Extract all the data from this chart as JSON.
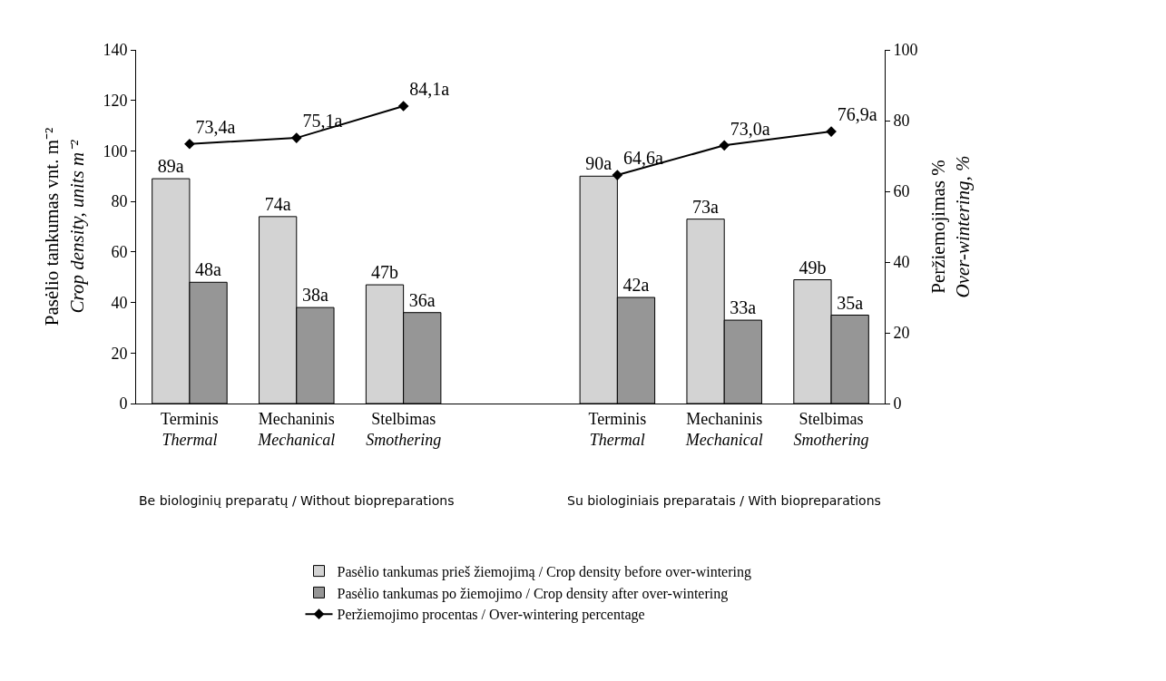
{
  "chart_data": {
    "type": "bar",
    "categories": [
      "Terminis\nThermal",
      "Mechaninis\nMechanical",
      "Stelbimas\nSmothering",
      null,
      "Terminis\nThermal",
      "Mechaninis\nMechanical",
      "Stelbimas\nSmothering"
    ],
    "series": [
      {
        "name": "Pasėlio tankumas prieš žiemojimą / Crop density before over-wintering",
        "color": "#d3d3d3",
        "values": [
          89,
          74,
          47,
          null,
          90,
          73,
          49
        ],
        "value_labels": [
          "89a",
          "74a",
          "47b",
          null,
          "90a",
          "73a",
          "49b"
        ]
      },
      {
        "name": "Pasėlio tankumas po žiemojimo / Crop density after over-wintering",
        "color": "#969696",
        "values": [
          48,
          38,
          36,
          null,
          42,
          33,
          35
        ],
        "value_labels": [
          "48a",
          "38a",
          "36a",
          null,
          "42a",
          "33a",
          "35a"
        ]
      },
      {
        "name": "Peržiemojimo procentas / Over-wintering percentage",
        "type": "line",
        "axis": "y2",
        "color": "#000000",
        "marker": "diamond",
        "values": [
          73.4,
          75.1,
          84.1,
          null,
          64.6,
          73.0,
          76.9
        ],
        "value_labels": [
          "73,4a",
          "75,1a",
          "84,1a",
          null,
          "64,6a",
          "73,0a",
          "76,9a"
        ]
      }
    ],
    "ylabel": "Pasėlio tankumas vnt. m⁻²\nCrop density, units m⁻²",
    "y2label": "Peržiemojimas %\nOver-wintering, %",
    "ylim": [
      0,
      140
    ],
    "yticks": [
      0,
      20,
      40,
      60,
      80,
      100,
      120,
      140
    ],
    "y2lim": [
      0,
      100
    ],
    "y2ticks": [
      0,
      20,
      40,
      60,
      80,
      100
    ],
    "annotations": [
      "Be biologinių preparatų / Without biopreparations",
      "Su biologiniais preparatais / With biopreparations"
    ],
    "legend": "bottom"
  }
}
